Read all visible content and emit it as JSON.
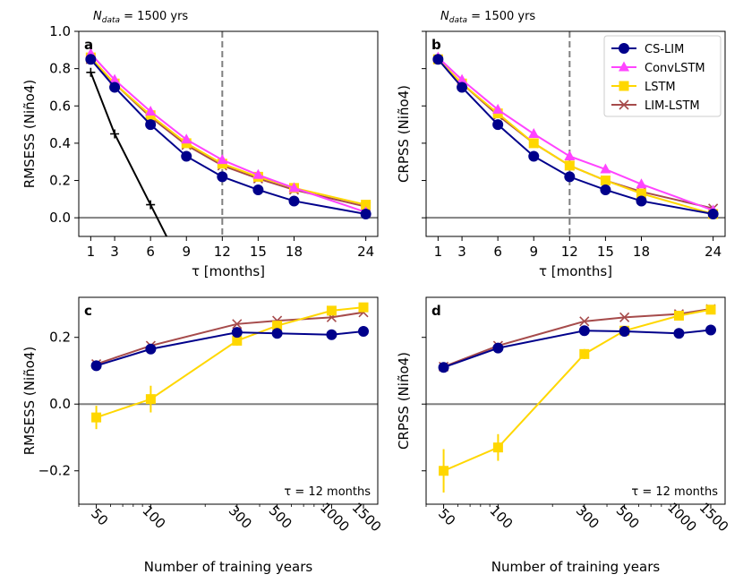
{
  "colors": {
    "cslim": "#00008b",
    "convlstm": "#ff44ff",
    "lstm": "#ffd700",
    "limlstm": "#a64b4b",
    "persistence": "#000000",
    "zero_line": "#808080",
    "vline": "#808080"
  },
  "chart_data": [
    {
      "panel": "a",
      "type": "line",
      "top_label": "N_data = 1500 yrs",
      "ylabel": "RMSESS (Niño4)",
      "xlabel": "τ [months]",
      "xlim": [
        0,
        25
      ],
      "ylim": [
        -0.1,
        1.0
      ],
      "xticks": [
        1,
        3,
        6,
        9,
        12,
        15,
        18,
        24
      ],
      "yticks": [
        0.0,
        0.2,
        0.4,
        0.6,
        0.8,
        1.0
      ],
      "yticklabels": [
        "0.0",
        "0.2",
        "0.4",
        "0.6",
        "0.8",
        "1.0"
      ],
      "vline_x": 12,
      "hline_y": 0,
      "x": [
        1,
        3,
        6,
        9,
        12,
        15,
        18,
        24
      ],
      "series": [
        {
          "key": "limlstm",
          "marker": "x",
          "values": [
            0.85,
            0.72,
            0.54,
            0.39,
            0.28,
            0.21,
            0.15,
            0.06
          ]
        },
        {
          "key": "lstm",
          "marker": "square",
          "values": [
            0.86,
            0.72,
            0.55,
            0.4,
            0.29,
            0.22,
            0.16,
            0.07
          ]
        },
        {
          "key": "convlstm",
          "marker": "triangle",
          "values": [
            0.88,
            0.74,
            0.57,
            0.42,
            0.31,
            0.23,
            0.16,
            0.03
          ]
        },
        {
          "key": "cslim",
          "marker": "circle",
          "values": [
            0.85,
            0.7,
            0.5,
            0.33,
            0.22,
            0.15,
            0.09,
            0.02
          ]
        }
      ],
      "persistence": {
        "x": [
          1,
          3,
          6,
          7.5
        ],
        "y": [
          0.78,
          0.45,
          0.07,
          -0.12
        ]
      },
      "show_yticklabels": true
    },
    {
      "panel": "b",
      "type": "line",
      "top_label": "N_data = 1500 yrs",
      "ylabel": "CRPSS (Niño4)",
      "xlabel": "τ [months]",
      "xlim": [
        0,
        25
      ],
      "ylim": [
        -0.1,
        1.0
      ],
      "xticks": [
        1,
        3,
        6,
        9,
        12,
        15,
        18,
        24
      ],
      "yticks": [
        0.0,
        0.2,
        0.4,
        0.6,
        0.8,
        1.0
      ],
      "vline_x": 12,
      "hline_y": 0,
      "x": [
        1,
        3,
        6,
        9,
        12,
        15,
        18,
        24
      ],
      "series": [
        {
          "key": "limlstm",
          "marker": "x",
          "values": [
            0.85,
            0.72,
            0.55,
            0.4,
            0.28,
            0.2,
            0.14,
            0.05
          ]
        },
        {
          "key": "lstm",
          "marker": "square",
          "values": [
            0.85,
            0.72,
            0.56,
            0.4,
            0.28,
            0.2,
            0.13,
            0.02
          ]
        },
        {
          "key": "convlstm",
          "marker": "triangle",
          "values": [
            0.86,
            0.74,
            0.58,
            0.45,
            0.33,
            0.26,
            0.18,
            0.04
          ]
        },
        {
          "key": "cslim",
          "marker": "circle",
          "values": [
            0.85,
            0.7,
            0.5,
            0.33,
            0.22,
            0.15,
            0.09,
            0.02
          ]
        }
      ],
      "show_yticklabels": false,
      "legend": {
        "placement": "top-right",
        "entries": [
          {
            "key": "cslim",
            "label": "CS-LIM"
          },
          {
            "key": "convlstm",
            "label": "ConvLSTM"
          },
          {
            "key": "lstm",
            "label": "LSTM"
          },
          {
            "key": "limlstm",
            "label": "LIM-LSTM"
          }
        ]
      }
    },
    {
      "panel": "c",
      "type": "line",
      "ylabel": "RMSESS (Niño4)",
      "xlabel": "Number of training years",
      "xscale": "log",
      "xlim": [
        40,
        1800
      ],
      "ylim": [
        -0.3,
        0.32
      ],
      "xticks": [
        50,
        100,
        300,
        500,
        1000,
        1500
      ],
      "yticks": [
        -0.2,
        0.0,
        0.2
      ],
      "yticklabels": [
        "−0.2",
        "0.0",
        "0.2"
      ],
      "hline_y": 0,
      "annotation": "τ = 12 months",
      "x": [
        50,
        100,
        300,
        500,
        1000,
        1500
      ],
      "series": [
        {
          "key": "limlstm",
          "marker": "x",
          "values": [
            0.12,
            0.175,
            0.24,
            0.25,
            0.26,
            0.275
          ]
        },
        {
          "key": "lstm",
          "marker": "square",
          "values": [
            -0.04,
            0.015,
            0.19,
            0.235,
            0.28,
            0.29
          ],
          "yerr": [
            0.035,
            0.04,
            0.015,
            0.01,
            0.01,
            0.01
          ]
        },
        {
          "key": "cslim",
          "marker": "circle",
          "values": [
            0.115,
            0.165,
            0.215,
            0.212,
            0.208,
            0.218
          ]
        }
      ],
      "show_yticklabels": true
    },
    {
      "panel": "d",
      "type": "line",
      "ylabel": "CRPSS (Niño4)",
      "xlabel": "Number of training years",
      "xscale": "log",
      "xlim": [
        40,
        1800
      ],
      "ylim": [
        -0.3,
        0.32
      ],
      "xticks": [
        50,
        100,
        300,
        500,
        1000,
        1500
      ],
      "yticks": [
        -0.2,
        0.0,
        0.2
      ],
      "hline_y": 0,
      "annotation": "τ = 12 months",
      "x": [
        50,
        100,
        300,
        500,
        1000,
        1500
      ],
      "series": [
        {
          "key": "limlstm",
          "marker": "x",
          "values": [
            0.112,
            0.175,
            0.248,
            0.26,
            0.27,
            0.285
          ]
        },
        {
          "key": "lstm",
          "marker": "square",
          "values": [
            -0.2,
            -0.13,
            0.15,
            0.22,
            0.265,
            0.283
          ],
          "yerr": [
            0.065,
            0.04,
            0.015,
            0.01,
            0.01,
            0.01
          ]
        },
        {
          "key": "cslim",
          "marker": "circle",
          "values": [
            0.11,
            0.168,
            0.22,
            0.218,
            0.212,
            0.222
          ]
        }
      ],
      "show_yticklabels": false
    }
  ]
}
